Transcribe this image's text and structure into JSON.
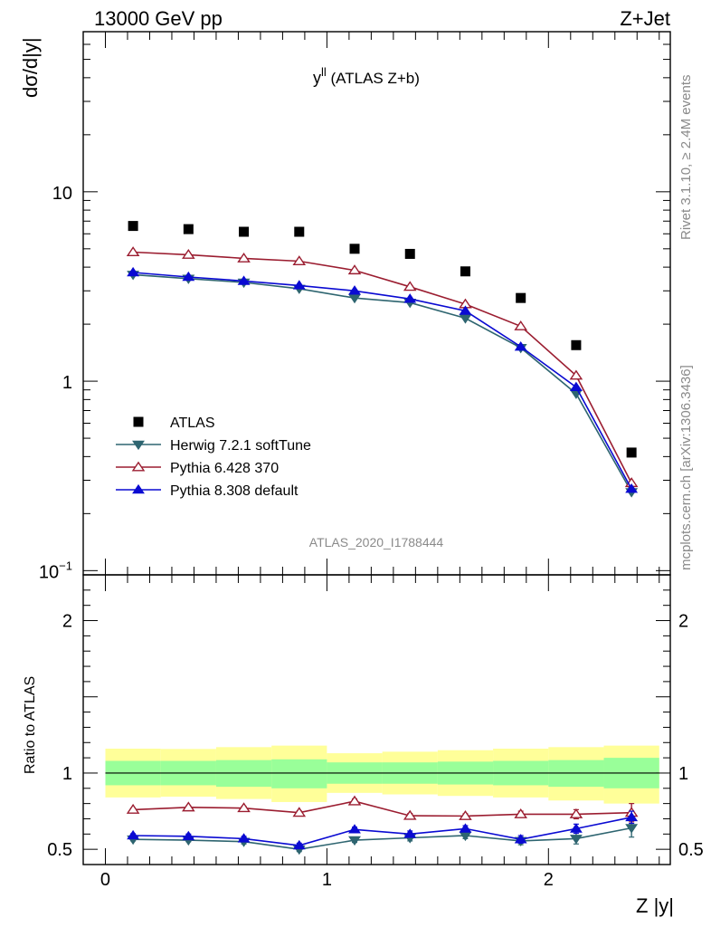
{
  "header": {
    "left": "13000 GeV pp",
    "right": "Z+Jet"
  },
  "side": {
    "rivet": "Rivet 3.1.10, ≥ 2.4M events",
    "mcplots": "mcplots.cern.ch [arXiv:1306.3436]"
  },
  "chart_data": [
    {
      "type": "scatter",
      "title": "y",
      "title_sup": "ll",
      "title_rest": " (ATLAS Z+b)",
      "watermark": "ATLAS_2020_I1788444",
      "ylabel": "dσ/d|y|",
      "xlim": [
        -0.1,
        2.55
      ],
      "ylim": [
        0.095,
        70
      ],
      "yscale": "log",
      "x": [
        0.125,
        0.375,
        0.625,
        0.875,
        1.125,
        1.375,
        1.625,
        1.875,
        2.125,
        2.375
      ],
      "y_ticks": [
        {
          "value": 0.1,
          "base": "10",
          "sup": "−1"
        },
        {
          "value": 1,
          "base": "1",
          "sup": ""
        },
        {
          "value": 10,
          "base": "10",
          "sup": ""
        }
      ],
      "legend_position": "lower-left",
      "series": [
        {
          "name": "ATLAS",
          "color": "#000000",
          "marker": "square-filled",
          "line": false,
          "values": [
            6.6,
            6.35,
            6.15,
            6.15,
            5.0,
            4.7,
            3.8,
            2.75,
            1.55,
            0.42
          ]
        },
        {
          "name": "Herwig 7.2.1 softTune",
          "color": "#2e6570",
          "marker": "triangle-down-filled",
          "line": true,
          "values": [
            3.65,
            3.48,
            3.32,
            3.08,
            2.75,
            2.6,
            2.15,
            1.5,
            0.86,
            0.26
          ]
        },
        {
          "name": "Pythia 6.428 370",
          "color": "#9b1d30",
          "marker": "triangle-up-open",
          "line": true,
          "values": [
            4.8,
            4.65,
            4.45,
            4.3,
            3.85,
            3.15,
            2.55,
            1.95,
            1.07,
            0.29
          ]
        },
        {
          "name": "Pythia 8.308 default",
          "color": "#0a0ad2",
          "marker": "triangle-up-filled",
          "line": true,
          "values": [
            3.75,
            3.55,
            3.38,
            3.2,
            3.0,
            2.72,
            2.35,
            1.52,
            0.93,
            0.27
          ]
        }
      ]
    },
    {
      "type": "scatter",
      "xlabel": "Z |y|",
      "ylabel": "Ratio to ATLAS",
      "xlim": [
        -0.1,
        2.55
      ],
      "ylim": [
        0.4,
        2.3
      ],
      "x_ticks": [
        {
          "value": 0,
          "label": "0"
        },
        {
          "value": 1,
          "label": "1"
        },
        {
          "value": 2,
          "label": "2"
        }
      ],
      "y_ticks": [
        {
          "value": 0.5,
          "label": "0.5"
        },
        {
          "value": 1,
          "label": "1"
        },
        {
          "value": 2,
          "label": "2"
        }
      ],
      "reference_line": 1,
      "bands": {
        "yellow_color": "#ffff99",
        "green_color": "#99ff99",
        "yellow": [
          [
            0.84,
            1.16
          ],
          [
            0.845,
            1.158
          ],
          [
            0.83,
            1.17
          ],
          [
            0.81,
            1.18
          ],
          [
            0.87,
            1.13
          ],
          [
            0.86,
            1.14
          ],
          [
            0.85,
            1.15
          ],
          [
            0.84,
            1.16
          ],
          [
            0.82,
            1.17
          ],
          [
            0.8,
            1.18
          ]
        ],
        "green": [
          [
            0.92,
            1.08
          ],
          [
            0.92,
            1.08
          ],
          [
            0.91,
            1.085
          ],
          [
            0.9,
            1.09
          ],
          [
            0.93,
            1.07
          ],
          [
            0.93,
            1.07
          ],
          [
            0.925,
            1.075
          ],
          [
            0.92,
            1.08
          ],
          [
            0.91,
            1.085
          ],
          [
            0.9,
            1.1
          ]
        ]
      },
      "series": [
        {
          "name": "Herwig 7.2.1 softTune",
          "color": "#2e6570",
          "marker": "triangle-down-filled",
          "values": [
            0.565,
            0.56,
            0.55,
            0.5,
            0.56,
            0.575,
            0.59,
            0.555,
            0.57,
            0.64
          ],
          "err": [
            0.01,
            0.01,
            0.015,
            0.015,
            0.015,
            0.02,
            0.02,
            0.025,
            0.035,
            0.06
          ]
        },
        {
          "name": "Pythia 6.428 370",
          "color": "#9b1d30",
          "marker": "triangle-up-open",
          "values": [
            0.76,
            0.775,
            0.77,
            0.74,
            0.815,
            0.72,
            0.718,
            0.73,
            0.73,
            0.74
          ],
          "err": [
            0.01,
            0.01,
            0.012,
            0.012,
            0.015,
            0.015,
            0.015,
            0.02,
            0.03,
            0.06
          ]
        },
        {
          "name": "Pythia 8.308 default",
          "color": "#0a0ad2",
          "marker": "triangle-up-filled",
          "values": [
            0.59,
            0.585,
            0.57,
            0.525,
            0.63,
            0.6,
            0.635,
            0.565,
            0.635,
            0.71
          ],
          "err": [
            0.012,
            0.015,
            0.015,
            0.015,
            0.015,
            0.02,
            0.02,
            0.025,
            0.03,
            0.04
          ]
        }
      ]
    }
  ]
}
